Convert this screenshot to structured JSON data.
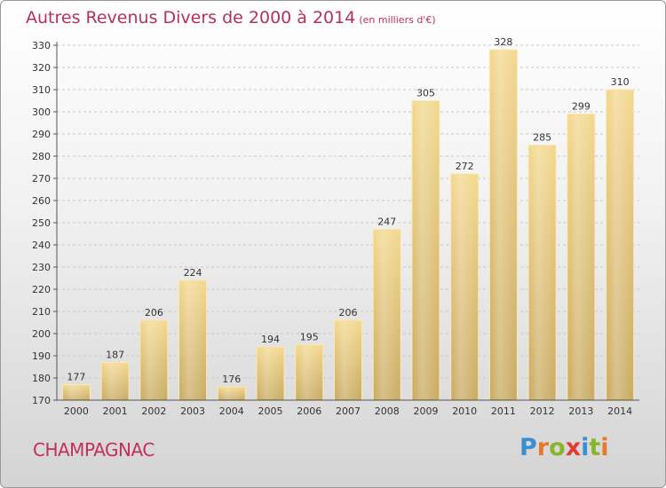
{
  "title": "Autres Revenus Divers de 2000 à 2014",
  "subtitle": "(en milliers d'€)",
  "place": "CHAMPAGNAC",
  "logo": {
    "letters": [
      "P",
      "r",
      "o",
      "x",
      "i",
      "t",
      "i"
    ],
    "colors": [
      "#3a8fd0",
      "#e8782a",
      "#8ab42c",
      "#e23b30",
      "#3a8fd0",
      "#8ab42c",
      "#e8782a"
    ]
  },
  "chart_data": {
    "type": "bar",
    "title": "Autres Revenus Divers de 2000 à 2014",
    "subtitle": "(en milliers d'€)",
    "categories": [
      "2000",
      "2001",
      "2002",
      "2003",
      "2004",
      "2005",
      "2006",
      "2007",
      "2008",
      "2009",
      "2010",
      "2011",
      "2012",
      "2013",
      "2014"
    ],
    "values": [
      177,
      187,
      206,
      224,
      176,
      194,
      195,
      206,
      247,
      305,
      272,
      328,
      285,
      299,
      310
    ],
    "ylim": [
      170,
      330
    ],
    "yticks": [
      170,
      180,
      190,
      200,
      210,
      220,
      230,
      240,
      250,
      260,
      270,
      280,
      290,
      300,
      310,
      320,
      330
    ],
    "grid": true,
    "xlabel": "",
    "ylabel": "",
    "bar_color": "#e8c77a"
  }
}
